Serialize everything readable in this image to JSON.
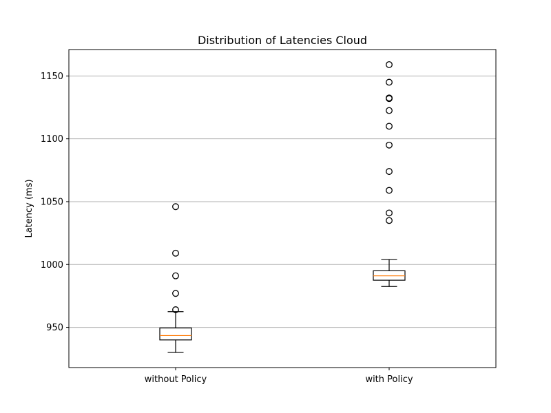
{
  "chart_data": {
    "type": "box",
    "title": "Distribution of Latencies Cloud",
    "xlabel": "",
    "ylabel": "Latency (ms)",
    "ylim": [
      918,
      1171
    ],
    "yticks": [
      950,
      1000,
      1050,
      1100,
      1150
    ],
    "grid": "horizontal",
    "categories": [
      "without Policy",
      "with Policy"
    ],
    "boxes": [
      {
        "category": "without Policy",
        "whisker_low": 930,
        "q1": 940,
        "median": 943.5,
        "q3": 949.5,
        "whisker_high": 962.5,
        "outliers": [
          964,
          977,
          991,
          1009,
          1046
        ]
      },
      {
        "category": "with Policy",
        "whisker_low": 982.5,
        "q1": 987.5,
        "median": 991,
        "q3": 995,
        "whisker_high": 1004,
        "outliers": [
          1035,
          1041,
          1059,
          1074,
          1095,
          1110,
          1122.5,
          1132,
          1132.5,
          1145,
          1159
        ]
      }
    ],
    "colors": {
      "box": "#000000",
      "median": "#ff7f0e",
      "grid": "#b0b0b0"
    }
  }
}
